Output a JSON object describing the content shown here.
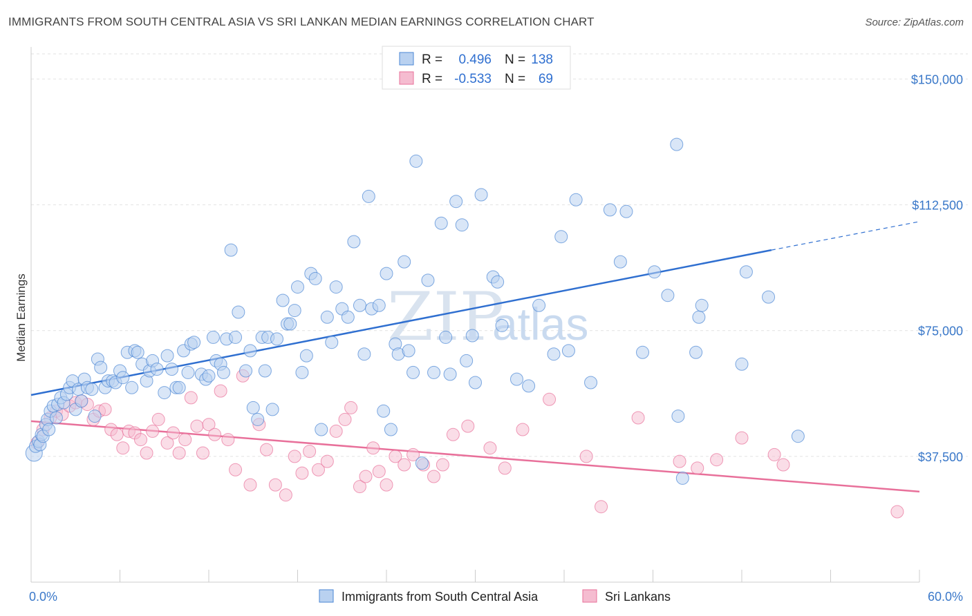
{
  "title": "IMMIGRANTS FROM SOUTH CENTRAL ASIA VS SRI LANKAN MEDIAN EARNINGS CORRELATION CHART",
  "source": "Source: ZipAtlas.com",
  "watermark": {
    "zip": "ZIP",
    "atlas": "atlas"
  },
  "colors": {
    "blue": "#4a86d4",
    "blue_fill": "#b9d1f0",
    "pink": "#e8709a",
    "pink_fill": "#f5bcd0",
    "tick_label": "#3a78c9"
  },
  "chart_data": {
    "type": "scatter",
    "xlabel": "",
    "ylabel": "Median Earnings",
    "xlim": [
      0,
      60
    ],
    "ylim": [
      0,
      157500
    ],
    "x_tick_labels": [
      "0.0%",
      "60.0%"
    ],
    "y_ticks": [
      {
        "value": 37500,
        "label": "$37,500"
      },
      {
        "value": 75000,
        "label": "$75,000"
      },
      {
        "value": 112500,
        "label": "$112,500"
      },
      {
        "value": 150000,
        "label": "$150,000"
      }
    ],
    "grid": true,
    "legend_position": "top-center",
    "legend": [
      {
        "r_label": "R =",
        "r": "0.496",
        "n_label": "N =",
        "n": "138"
      },
      {
        "r_label": "R =",
        "r": "-0.533",
        "n_label": "N =",
        "n": "69"
      }
    ],
    "series": [
      {
        "name": "Immigrants from South Central Asia",
        "trend": {
          "x": [
            0,
            50
          ],
          "y": [
            55800,
            99000
          ],
          "dashed_to": [
            60,
            107500
          ]
        },
        "points": [
          [
            0.2,
            38500
          ],
          [
            0.3,
            40500
          ],
          [
            0.5,
            42000
          ],
          [
            0.6,
            41000
          ],
          [
            0.7,
            44000
          ],
          [
            0.8,
            43500
          ],
          [
            1.0,
            47000
          ],
          [
            1.1,
            48500
          ],
          [
            1.2,
            45500
          ],
          [
            1.3,
            51000
          ],
          [
            1.5,
            52500
          ],
          [
            1.7,
            49000
          ],
          [
            1.8,
            53000
          ],
          [
            2.0,
            55000
          ],
          [
            2.2,
            53500
          ],
          [
            2.4,
            56000
          ],
          [
            2.6,
            58000
          ],
          [
            2.8,
            60000
          ],
          [
            3.0,
            51500
          ],
          [
            3.2,
            57500
          ],
          [
            3.4,
            54000
          ],
          [
            3.6,
            60500
          ],
          [
            3.8,
            58000
          ],
          [
            4.1,
            57500
          ],
          [
            4.3,
            49500
          ],
          [
            4.5,
            66500
          ],
          [
            4.7,
            64000
          ],
          [
            5.0,
            58000
          ],
          [
            5.2,
            60000
          ],
          [
            5.5,
            60000
          ],
          [
            5.7,
            59500
          ],
          [
            6.0,
            63000
          ],
          [
            6.2,
            61000
          ],
          [
            6.5,
            68500
          ],
          [
            6.8,
            58000
          ],
          [
            7.0,
            69000
          ],
          [
            7.2,
            68500
          ],
          [
            7.5,
            65000
          ],
          [
            7.8,
            60000
          ],
          [
            8.0,
            63000
          ],
          [
            8.2,
            66000
          ],
          [
            8.5,
            63500
          ],
          [
            9.0,
            56500
          ],
          [
            9.2,
            67500
          ],
          [
            9.5,
            63500
          ],
          [
            9.8,
            58000
          ],
          [
            10.0,
            58000
          ],
          [
            10.3,
            69000
          ],
          [
            10.6,
            62500
          ],
          [
            10.8,
            71000
          ],
          [
            11.0,
            71500
          ],
          [
            11.5,
            62000
          ],
          [
            11.8,
            60500
          ],
          [
            12.0,
            61500
          ],
          [
            12.3,
            73000
          ],
          [
            12.5,
            66000
          ],
          [
            12.8,
            65000
          ],
          [
            13.0,
            62500
          ],
          [
            13.2,
            72500
          ],
          [
            13.5,
            99000
          ],
          [
            13.8,
            73000
          ],
          [
            14.0,
            80500
          ],
          [
            14.5,
            63000
          ],
          [
            14.8,
            69000
          ],
          [
            15.0,
            52000
          ],
          [
            15.3,
            48500
          ],
          [
            15.6,
            73000
          ],
          [
            15.8,
            63000
          ],
          [
            16.0,
            73000
          ],
          [
            16.3,
            51500
          ],
          [
            16.6,
            72500
          ],
          [
            17.0,
            84000
          ],
          [
            17.3,
            77000
          ],
          [
            17.5,
            77000
          ],
          [
            17.8,
            81000
          ],
          [
            18.0,
            88000
          ],
          [
            18.3,
            62500
          ],
          [
            18.6,
            67500
          ],
          [
            18.9,
            92000
          ],
          [
            19.2,
            90500
          ],
          [
            19.6,
            45500
          ],
          [
            20.0,
            79000
          ],
          [
            20.3,
            71500
          ],
          [
            20.6,
            88000
          ],
          [
            21.0,
            81500
          ],
          [
            21.4,
            79000
          ],
          [
            21.8,
            101500
          ],
          [
            22.2,
            82500
          ],
          [
            22.5,
            68000
          ],
          [
            22.8,
            115000
          ],
          [
            23.0,
            81500
          ],
          [
            23.5,
            82500
          ],
          [
            23.8,
            51000
          ],
          [
            24.0,
            92000
          ],
          [
            24.3,
            45500
          ],
          [
            24.6,
            71000
          ],
          [
            24.8,
            68000
          ],
          [
            25.2,
            95500
          ],
          [
            25.5,
            69000
          ],
          [
            25.8,
            62500
          ],
          [
            26.0,
            125500
          ],
          [
            26.4,
            35500
          ],
          [
            26.8,
            90000
          ],
          [
            27.2,
            62500
          ],
          [
            27.7,
            107000
          ],
          [
            28.0,
            73000
          ],
          [
            28.3,
            62000
          ],
          [
            28.7,
            113500
          ],
          [
            29.1,
            106500
          ],
          [
            29.4,
            66000
          ],
          [
            29.8,
            73500
          ],
          [
            30.0,
            59500
          ],
          [
            30.4,
            115500
          ],
          [
            31.2,
            91000
          ],
          [
            31.5,
            89500
          ],
          [
            31.8,
            76500
          ],
          [
            32.8,
            60500
          ],
          [
            33.6,
            58500
          ],
          [
            34.3,
            82500
          ],
          [
            35.3,
            68000
          ],
          [
            35.8,
            103000
          ],
          [
            36.3,
            69000
          ],
          [
            36.8,
            114000
          ],
          [
            37.8,
            59500
          ],
          [
            39.1,
            111000
          ],
          [
            39.8,
            95500
          ],
          [
            40.2,
            110500
          ],
          [
            41.3,
            68500
          ],
          [
            42.1,
            92500
          ],
          [
            43.0,
            85500
          ],
          [
            43.7,
            49500
          ],
          [
            43.6,
            130500
          ],
          [
            44.0,
            31000
          ],
          [
            44.9,
            68500
          ],
          [
            45.1,
            79000
          ],
          [
            45.3,
            82500
          ],
          [
            48.0,
            65000
          ],
          [
            48.3,
            92500
          ],
          [
            49.8,
            85000
          ],
          [
            51.8,
            43500
          ]
        ]
      },
      {
        "name": "Sri Lankans",
        "trend": {
          "x": [
            0,
            60
          ],
          "y": [
            48000,
            27000
          ]
        },
        "points": [
          [
            0.4,
            41500
          ],
          [
            0.8,
            45500
          ],
          [
            1.3,
            49000
          ],
          [
            1.7,
            51000
          ],
          [
            2.1,
            50000
          ],
          [
            2.6,
            52500
          ],
          [
            3.0,
            53500
          ],
          [
            3.4,
            54000
          ],
          [
            3.8,
            53000
          ],
          [
            4.2,
            48500
          ],
          [
            4.6,
            51000
          ],
          [
            5.0,
            51500
          ],
          [
            5.4,
            45500
          ],
          [
            5.8,
            44000
          ],
          [
            6.2,
            40000
          ],
          [
            6.6,
            45000
          ],
          [
            7.0,
            44500
          ],
          [
            7.4,
            42500
          ],
          [
            7.8,
            38500
          ],
          [
            8.2,
            45000
          ],
          [
            8.6,
            48500
          ],
          [
            9.2,
            41500
          ],
          [
            9.6,
            44500
          ],
          [
            10.0,
            38500
          ],
          [
            10.4,
            42500
          ],
          [
            10.8,
            55000
          ],
          [
            11.2,
            46500
          ],
          [
            11.6,
            38500
          ],
          [
            12.0,
            47000
          ],
          [
            12.4,
            44000
          ],
          [
            12.8,
            57000
          ],
          [
            13.3,
            42500
          ],
          [
            13.8,
            33500
          ],
          [
            14.3,
            61500
          ],
          [
            14.8,
            29000
          ],
          [
            15.4,
            47000
          ],
          [
            15.9,
            39500
          ],
          [
            16.5,
            29000
          ],
          [
            17.2,
            26000
          ],
          [
            17.8,
            37500
          ],
          [
            18.3,
            32500
          ],
          [
            18.8,
            39000
          ],
          [
            19.4,
            33500
          ],
          [
            20.0,
            36000
          ],
          [
            20.6,
            45000
          ],
          [
            21.2,
            48500
          ],
          [
            21.6,
            52000
          ],
          [
            22.2,
            28500
          ],
          [
            22.6,
            31500
          ],
          [
            23.1,
            40000
          ],
          [
            23.5,
            33000
          ],
          [
            24.0,
            29000
          ],
          [
            24.6,
            37500
          ],
          [
            25.2,
            35000
          ],
          [
            25.8,
            38000
          ],
          [
            26.5,
            35000
          ],
          [
            27.2,
            31500
          ],
          [
            27.8,
            35000
          ],
          [
            28.5,
            44000
          ],
          [
            29.5,
            46500
          ],
          [
            31.0,
            40000
          ],
          [
            32.0,
            34000
          ],
          [
            33.2,
            45500
          ],
          [
            35.0,
            54500
          ],
          [
            37.5,
            37500
          ],
          [
            38.5,
            22500
          ],
          [
            41.0,
            49000
          ],
          [
            43.8,
            36000
          ],
          [
            45.0,
            34000
          ],
          [
            46.3,
            36500
          ],
          [
            48.0,
            43000
          ],
          [
            50.2,
            38000
          ],
          [
            50.8,
            35000
          ],
          [
            58.5,
            21000
          ]
        ]
      }
    ]
  }
}
